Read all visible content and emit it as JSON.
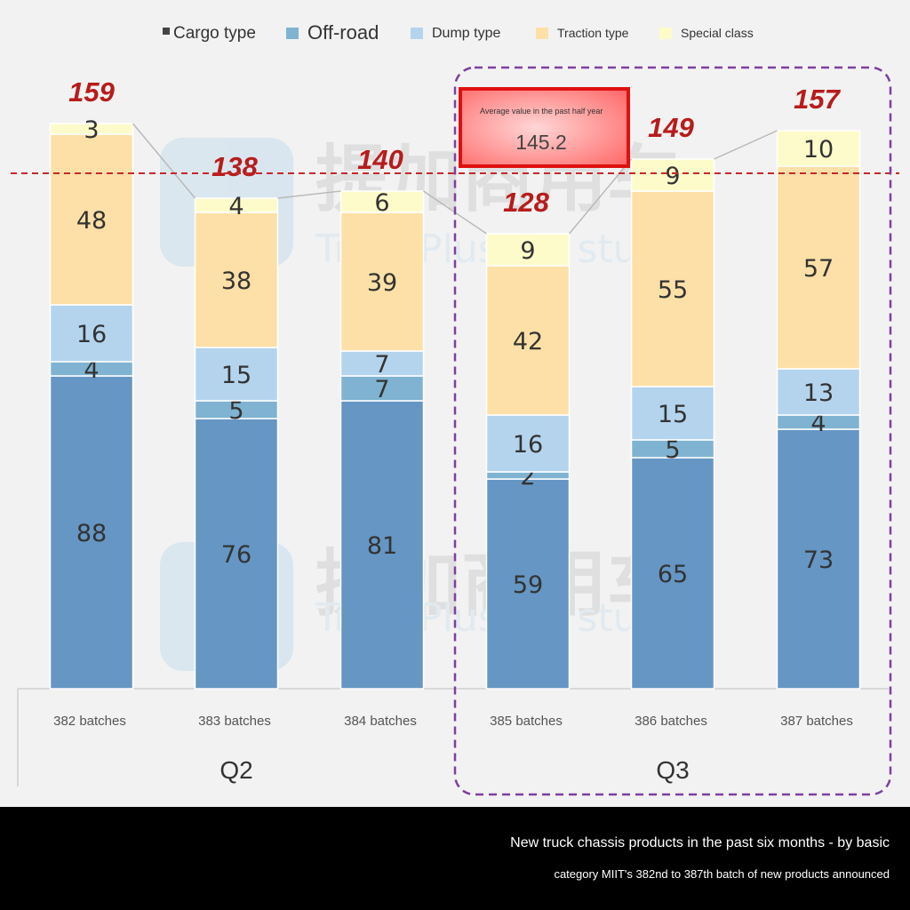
{
  "chart_data": {
    "type": "bar",
    "stacked": true,
    "categories": [
      "382 batches",
      "383 batches",
      "384 batches",
      "385 batches",
      "386 batches",
      "387 batches"
    ],
    "series": [
      {
        "name": "Cargo type",
        "color": "#6596c4",
        "values": [
          88,
          76,
          81,
          59,
          65,
          73
        ]
      },
      {
        "name": "Off-road",
        "color": "#7fb3d1",
        "values": [
          4,
          5,
          7,
          2,
          5,
          4
        ]
      },
      {
        "name": "Dump type",
        "color": "#b4d4ee",
        "values": [
          16,
          15,
          7,
          16,
          15,
          13
        ]
      },
      {
        "name": "Traction type",
        "color": "#fde0a7",
        "values": [
          48,
          38,
          39,
          42,
          55,
          57
        ]
      },
      {
        "name": "Special class",
        "color": "#fefbca",
        "values": [
          3,
          4,
          6,
          9,
          9,
          10
        ]
      }
    ],
    "totals": [
      "159",
      "138",
      "140",
      "128",
      "149",
      "157"
    ],
    "groups": [
      {
        "label": "Q2"
      },
      {
        "label": "Q3"
      }
    ],
    "average": {
      "label": "Average value in the past half year",
      "value": "145.2",
      "numeric": 145.2
    },
    "legend_position": "top",
    "grid": false
  },
  "watermark": {
    "text_cn": "提加商用车",
    "text_en": "TruckPlus CV studio"
  },
  "footer": {
    "line1": "New truck chassis products in the past six months - by basic",
    "line2": "category MIIT's 382nd to 387th batch of new products announced"
  }
}
